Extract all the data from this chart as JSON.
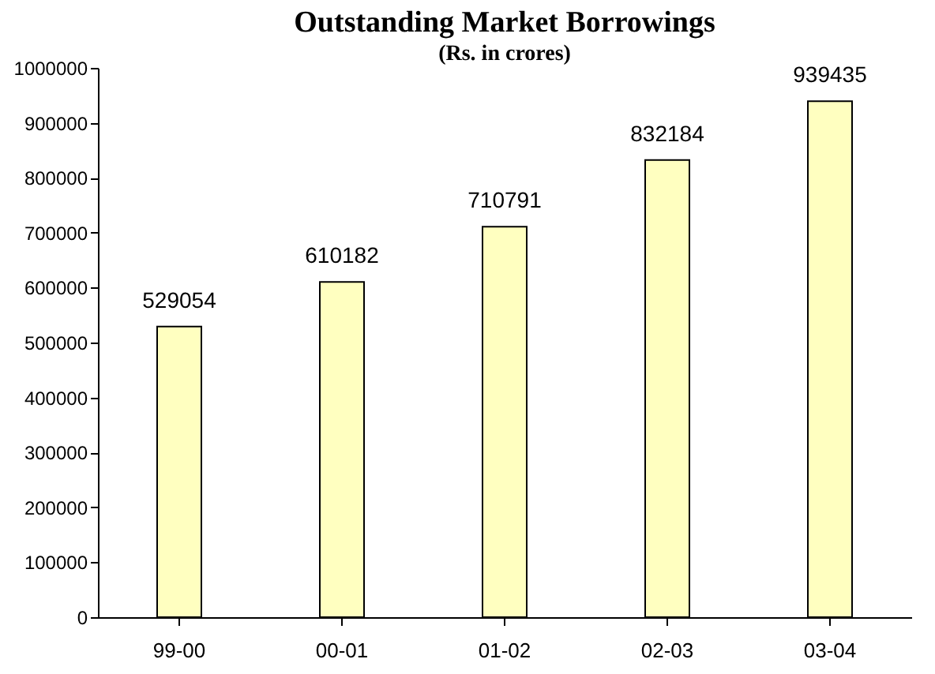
{
  "chart_data": {
    "type": "bar",
    "title": "Outstanding Market Borrowings",
    "subtitle": "(Rs. in crores)",
    "categories": [
      "99-00",
      "00-01",
      "01-02",
      "02-03",
      "03-04"
    ],
    "values": [
      529054,
      610182,
      710791,
      832184,
      939435
    ],
    "color": "#ffffc0",
    "ylim": [
      0,
      1000000
    ],
    "yticks": [
      0,
      100000,
      200000,
      300000,
      400000,
      500000,
      600000,
      700000,
      800000,
      900000,
      1000000
    ],
    "grid": false,
    "data_labels": true
  }
}
